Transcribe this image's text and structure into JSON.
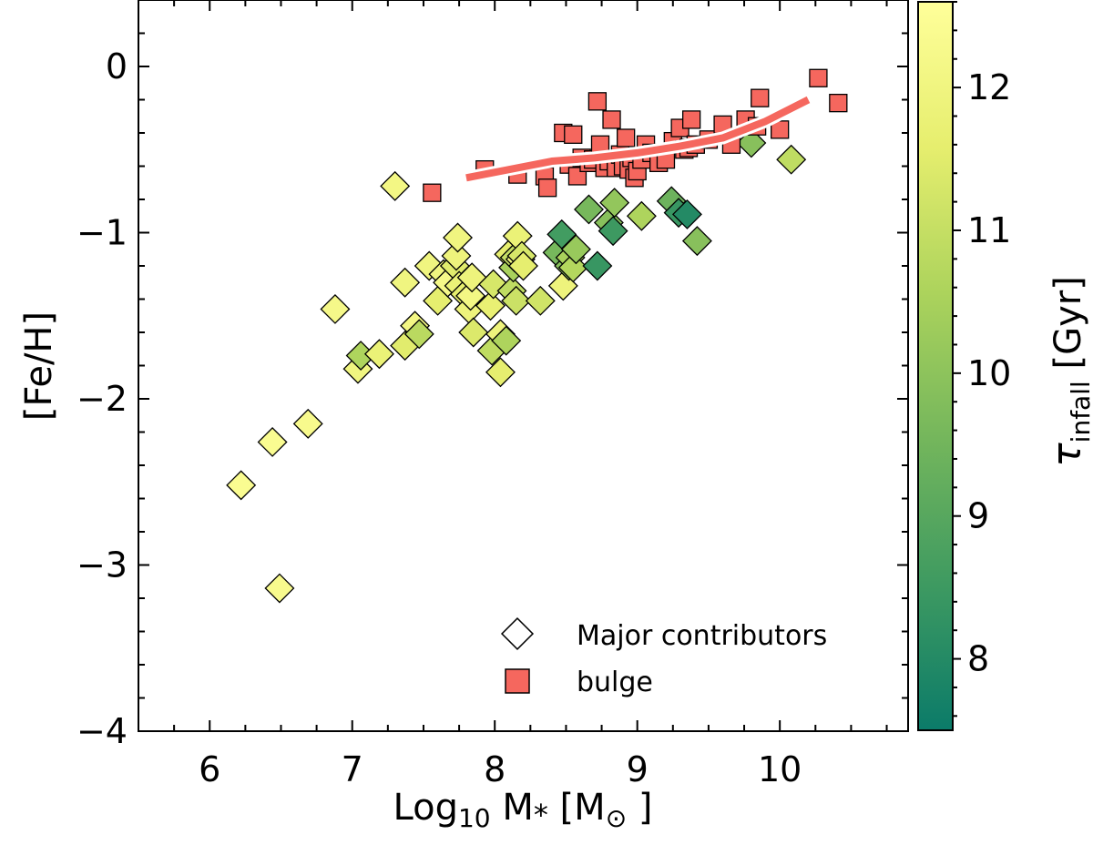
{
  "chart_data": {
    "type": "scatter",
    "title": "",
    "xlabel": {
      "main": "Log",
      "sub": "10",
      "rest": " M",
      "sub2": "*",
      "tail": " [M",
      "sub3": "⊙",
      "close": " ]"
    },
    "ylabel": "[Fe/H]",
    "xlim": [
      5.5,
      10.9
    ],
    "ylim": [
      -4,
      0.4
    ],
    "x_ticks": [
      6,
      7,
      8,
      9,
      10
    ],
    "x_tick_labels": [
      "6",
      "7",
      "8",
      "9",
      "10"
    ],
    "y_ticks": [
      -4,
      -3,
      -2,
      -1,
      0
    ],
    "y_tick_labels": [
      "−4",
      "−3",
      "−2",
      "−1",
      "0"
    ],
    "colorbar": {
      "label": {
        "main": "τ",
        "sub": "infall",
        "rest": " [Gyr]"
      },
      "range": [
        7.5,
        12.6
      ],
      "ticks": [
        8,
        9,
        10,
        11,
        12
      ],
      "tick_labels": [
        "8",
        "9",
        "10",
        "11",
        "12"
      ],
      "colors": [
        "#0b7b69",
        "#3e9a61",
        "#74b65c",
        "#acd35c",
        "#e6ee6e",
        "#ffff9a"
      ]
    },
    "legend": {
      "placement": "lower-right",
      "entries": [
        "Major contributors",
        "bulge"
      ]
    },
    "series": [
      {
        "name": "Major contributors",
        "marker": "diamond",
        "points": [
          {
            "x": 6.22,
            "y": -2.52,
            "c": 12.4
          },
          {
            "x": 6.44,
            "y": -2.26,
            "c": 12.4
          },
          {
            "x": 6.49,
            "y": -3.14,
            "c": 12.3
          },
          {
            "x": 6.69,
            "y": -2.15,
            "c": 12.3
          },
          {
            "x": 6.88,
            "y": -1.46,
            "c": 12.2
          },
          {
            "x": 7.04,
            "y": -1.82,
            "c": 12.0
          },
          {
            "x": 7.06,
            "y": -1.74,
            "c": 10.6
          },
          {
            "x": 7.19,
            "y": -1.73,
            "c": 11.8
          },
          {
            "x": 7.3,
            "y": -0.72,
            "c": 12.1
          },
          {
            "x": 7.37,
            "y": -1.68,
            "c": 11.5
          },
          {
            "x": 7.37,
            "y": -1.3,
            "c": 12.0
          },
          {
            "x": 7.44,
            "y": -1.56,
            "c": 12.1
          },
          {
            "x": 7.47,
            "y": -1.61,
            "c": 10.8
          },
          {
            "x": 7.54,
            "y": -1.2,
            "c": 12.0
          },
          {
            "x": 7.6,
            "y": -1.41,
            "c": 11.6
          },
          {
            "x": 7.64,
            "y": -1.25,
            "c": 12.0
          },
          {
            "x": 7.67,
            "y": -1.3,
            "c": 12.2
          },
          {
            "x": 7.72,
            "y": -1.2,
            "c": 11.5
          },
          {
            "x": 7.73,
            "y": -1.14,
            "c": 11.9
          },
          {
            "x": 7.74,
            "y": -1.03,
            "c": 12.0
          },
          {
            "x": 7.75,
            "y": -1.32,
            "c": 11.8
          },
          {
            "x": 7.79,
            "y": -1.37,
            "c": 11.6
          },
          {
            "x": 7.82,
            "y": -1.46,
            "c": 11.9
          },
          {
            "x": 7.83,
            "y": -1.38,
            "c": 12.1
          },
          {
            "x": 7.84,
            "y": -1.27,
            "c": 11.9
          },
          {
            "x": 7.85,
            "y": -1.6,
            "c": 11.4
          },
          {
            "x": 7.97,
            "y": -1.44,
            "c": 11.7
          },
          {
            "x": 7.98,
            "y": -1.71,
            "c": 10.9
          },
          {
            "x": 7.99,
            "y": -1.31,
            "c": 11.3
          },
          {
            "x": 8.04,
            "y": -1.84,
            "c": 11.6
          },
          {
            "x": 8.04,
            "y": -1.61,
            "c": 11.9
          },
          {
            "x": 8.08,
            "y": -1.65,
            "c": 10.6
          },
          {
            "x": 8.1,
            "y": -1.13,
            "c": 11.6
          },
          {
            "x": 8.12,
            "y": -1.35,
            "c": 10.9
          },
          {
            "x": 8.13,
            "y": -1.21,
            "c": 10.5
          },
          {
            "x": 8.14,
            "y": -1.15,
            "c": 11.0
          },
          {
            "x": 8.15,
            "y": -1.41,
            "c": 11.1
          },
          {
            "x": 8.16,
            "y": -1.02,
            "c": 11.8
          },
          {
            "x": 8.18,
            "y": -1.16,
            "c": 12.0
          },
          {
            "x": 8.19,
            "y": -1.14,
            "c": 11.3
          },
          {
            "x": 8.2,
            "y": -1.2,
            "c": 11.6
          },
          {
            "x": 8.32,
            "y": -1.41,
            "c": 11.2
          },
          {
            "x": 8.44,
            "y": -1.12,
            "c": 9.6
          },
          {
            "x": 8.47,
            "y": -1.01,
            "c": 8.6
          },
          {
            "x": 8.48,
            "y": -1.32,
            "c": 11.9
          },
          {
            "x": 8.52,
            "y": -1.2,
            "c": 9.9
          },
          {
            "x": 8.53,
            "y": -1.15,
            "c": 10.5
          },
          {
            "x": 8.55,
            "y": -1.21,
            "c": 10.7
          },
          {
            "x": 8.57,
            "y": -1.1,
            "c": 10.2
          },
          {
            "x": 8.66,
            "y": -0.86,
            "c": 9.6
          },
          {
            "x": 8.72,
            "y": -1.2,
            "c": 8.4
          },
          {
            "x": 8.8,
            "y": -0.94,
            "c": 9.9
          },
          {
            "x": 8.83,
            "y": -0.99,
            "c": 8.5
          },
          {
            "x": 8.84,
            "y": -0.82,
            "c": 10.1
          },
          {
            "x": 9.03,
            "y": -0.9,
            "c": 10.6
          },
          {
            "x": 9.24,
            "y": -0.81,
            "c": 9.4
          },
          {
            "x": 9.29,
            "y": -0.88,
            "c": 8.4
          },
          {
            "x": 9.35,
            "y": -0.89,
            "c": 8.0
          },
          {
            "x": 9.42,
            "y": -1.05,
            "c": 9.9
          },
          {
            "x": 9.8,
            "y": -0.46,
            "c": 9.9
          },
          {
            "x": 10.08,
            "y": -0.56,
            "c": 10.9
          }
        ]
      },
      {
        "name": "bulge",
        "marker": "square",
        "color": "#f5675e",
        "points": [
          {
            "x": 7.56,
            "y": -0.76
          },
          {
            "x": 7.93,
            "y": -0.62
          },
          {
            "x": 8.16,
            "y": -0.65
          },
          {
            "x": 8.35,
            "y": -0.66
          },
          {
            "x": 8.37,
            "y": -0.73
          },
          {
            "x": 8.48,
            "y": -0.4
          },
          {
            "x": 8.52,
            "y": -0.59
          },
          {
            "x": 8.55,
            "y": -0.41
          },
          {
            "x": 8.58,
            "y": -0.66
          },
          {
            "x": 8.61,
            "y": -0.55
          },
          {
            "x": 8.66,
            "y": -0.58
          },
          {
            "x": 8.69,
            "y": -0.56
          },
          {
            "x": 8.72,
            "y": -0.21
          },
          {
            "x": 8.74,
            "y": -0.47
          },
          {
            "x": 8.77,
            "y": -0.61
          },
          {
            "x": 8.8,
            "y": -0.57
          },
          {
            "x": 8.82,
            "y": -0.32
          },
          {
            "x": 8.85,
            "y": -0.61
          },
          {
            "x": 8.88,
            "y": -0.53
          },
          {
            "x": 8.9,
            "y": -0.6
          },
          {
            "x": 8.92,
            "y": -0.43
          },
          {
            "x": 8.94,
            "y": -0.62
          },
          {
            "x": 8.96,
            "y": -0.55
          },
          {
            "x": 8.98,
            "y": -0.67
          },
          {
            "x": 9.0,
            "y": -0.63
          },
          {
            "x": 9.03,
            "y": -0.56
          },
          {
            "x": 9.06,
            "y": -0.47
          },
          {
            "x": 9.1,
            "y": -0.52
          },
          {
            "x": 9.15,
            "y": -0.58
          },
          {
            "x": 9.2,
            "y": -0.56
          },
          {
            "x": 9.25,
            "y": -0.45
          },
          {
            "x": 9.3,
            "y": -0.37
          },
          {
            "x": 9.33,
            "y": -0.5
          },
          {
            "x": 9.36,
            "y": -0.49
          },
          {
            "x": 9.38,
            "y": -0.32
          },
          {
            "x": 9.41,
            "y": -0.47
          },
          {
            "x": 9.5,
            "y": -0.44
          },
          {
            "x": 9.6,
            "y": -0.35
          },
          {
            "x": 9.66,
            "y": -0.47
          },
          {
            "x": 9.76,
            "y": -0.32
          },
          {
            "x": 9.84,
            "y": -0.36
          },
          {
            "x": 9.86,
            "y": -0.19
          },
          {
            "x": 10.0,
            "y": -0.38
          },
          {
            "x": 10.27,
            "y": -0.07
          },
          {
            "x": 10.41,
            "y": -0.22
          }
        ]
      },
      {
        "name": "bulge trend",
        "type": "line",
        "color": "#f5675e",
        "points": [
          {
            "x": 7.8,
            "y": -0.67
          },
          {
            "x": 8.1,
            "y": -0.62
          },
          {
            "x": 8.4,
            "y": -0.57
          },
          {
            "x": 8.7,
            "y": -0.55
          },
          {
            "x": 9.0,
            "y": -0.52
          },
          {
            "x": 9.3,
            "y": -0.48
          },
          {
            "x": 9.6,
            "y": -0.43
          },
          {
            "x": 9.9,
            "y": -0.33
          },
          {
            "x": 10.2,
            "y": -0.2
          }
        ]
      }
    ]
  }
}
